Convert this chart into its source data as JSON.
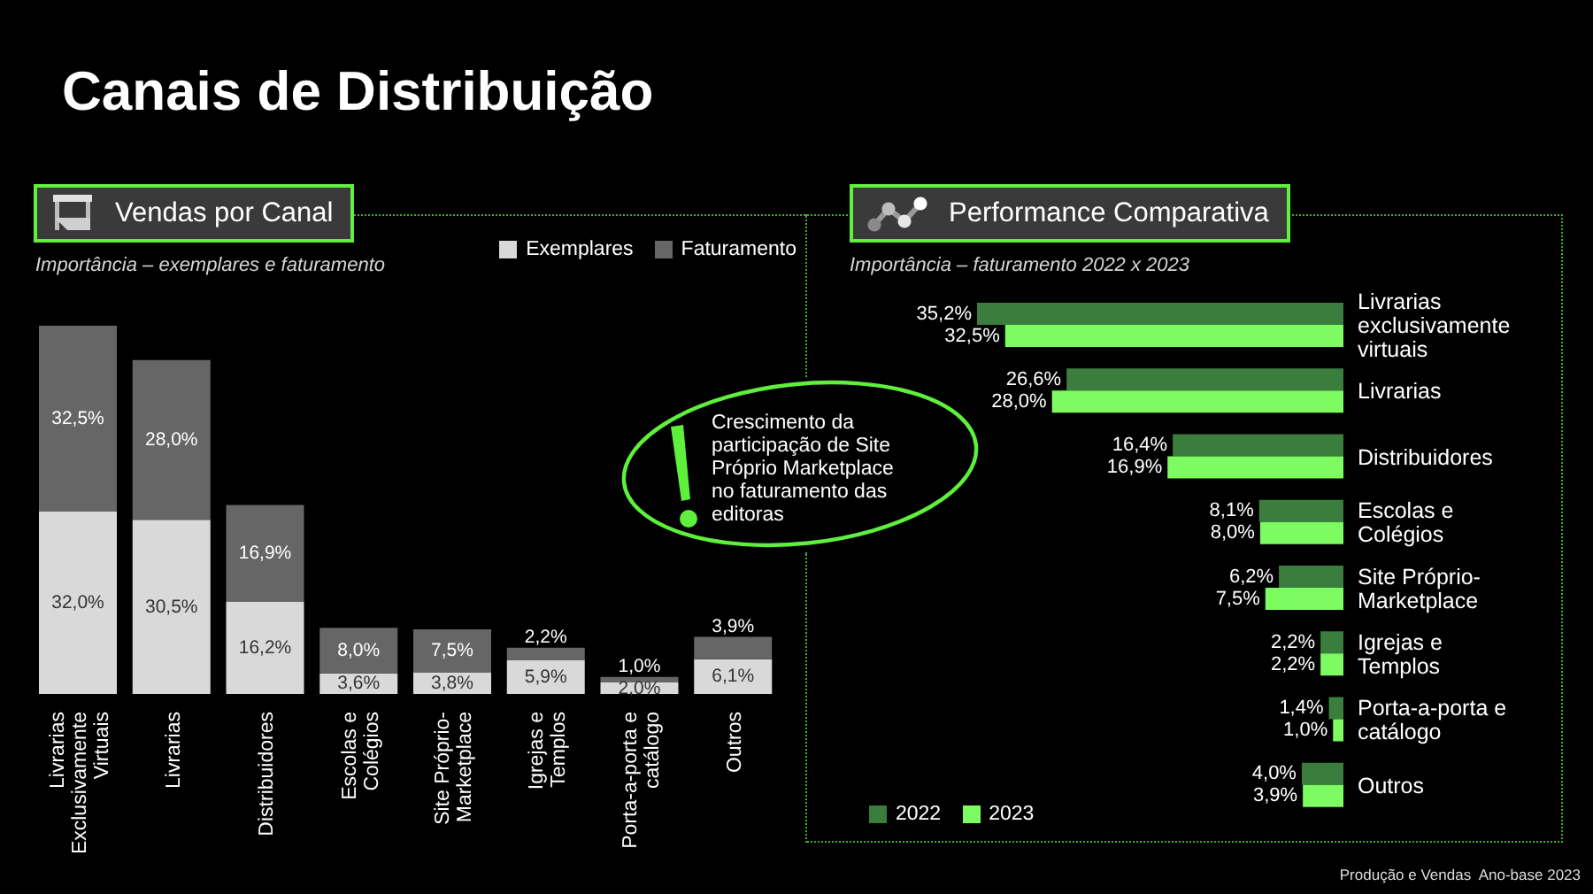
{
  "chart_data": [
    {
      "type": "bar",
      "title": "Vendas por Canal",
      "subtitle": "Importância – exemplares e faturamento",
      "annotations": [
        "Canais de Distribuição"
      ],
      "categories": [
        "Livrarias Exclusivamente Virtuais",
        "Livrarias",
        "Distribuidores",
        "Escolas e Colégios",
        "Site Próprio-Marketplace",
        "Igrejas e Templos",
        "Porta-a-porta e catálogo",
        "Outros"
      ],
      "stacked": true,
      "series": [
        {
          "name": "Exemplares",
          "color": "#d9d9d9",
          "values": [
            32.0,
            30.5,
            16.2,
            3.6,
            3.8,
            5.9,
            2.0,
            6.1
          ],
          "value_labels": [
            "32,0%",
            "30,5%",
            "16,2%",
            "3,6%",
            "3,8%",
            "5,9%",
            "2,0%",
            "6,1%"
          ]
        },
        {
          "name": "Faturamento",
          "color": "#666666",
          "values": [
            32.5,
            28.0,
            16.9,
            8.0,
            7.5,
            2.2,
            1.0,
            3.9
          ],
          "value_labels": [
            "32,5%",
            "28,0%",
            "16,9%",
            "8,0%",
            "7,5%",
            "2,2%",
            "1,0%",
            "3,9%"
          ]
        }
      ],
      "legend": "top right",
      "tick_labels": "x"
    },
    {
      "type": "bar",
      "orientation": "horizontal",
      "title": "Performance Comparativa",
      "subtitle": "Importância – faturamento 2022 x 2023",
      "annotations": [
        "Crescimento da participação de Site Próprio Marketplace no faturamento das editoras",
        "Produção e Vendas  Ano-base 2023"
      ],
      "categories": [
        "Livrarias exclusivamente virtuais",
        "Livrarias",
        "Distribuidores",
        "Escolas e Colégios",
        "Site Próprio-Marketplace",
        "Igrejas e Templos",
        "Porta-a-porta e catálogo",
        "Outros"
      ],
      "series": [
        {
          "name": "2022",
          "color": "#3a7d3c",
          "values": [
            35.2,
            26.6,
            16.4,
            8.1,
            6.2,
            2.2,
            1.4,
            4.0
          ],
          "value_labels": [
            "35,2%",
            "26,6%",
            "16,4%",
            "8,1%",
            "6,2%",
            "2,2%",
            "1,4%",
            "4,0%"
          ]
        },
        {
          "name": "2023",
          "color": "#7cfc60",
          "values": [
            32.5,
            28.0,
            16.9,
            8.0,
            7.5,
            2.2,
            1.0,
            3.9
          ],
          "value_labels": [
            "32,5%",
            "28,0%",
            "16,9%",
            "8,0%",
            "7,5%",
            "2,2%",
            "1,0%",
            "3,9%"
          ]
        }
      ],
      "legend": "bottom left",
      "tick_labels": "y"
    }
  ]
}
